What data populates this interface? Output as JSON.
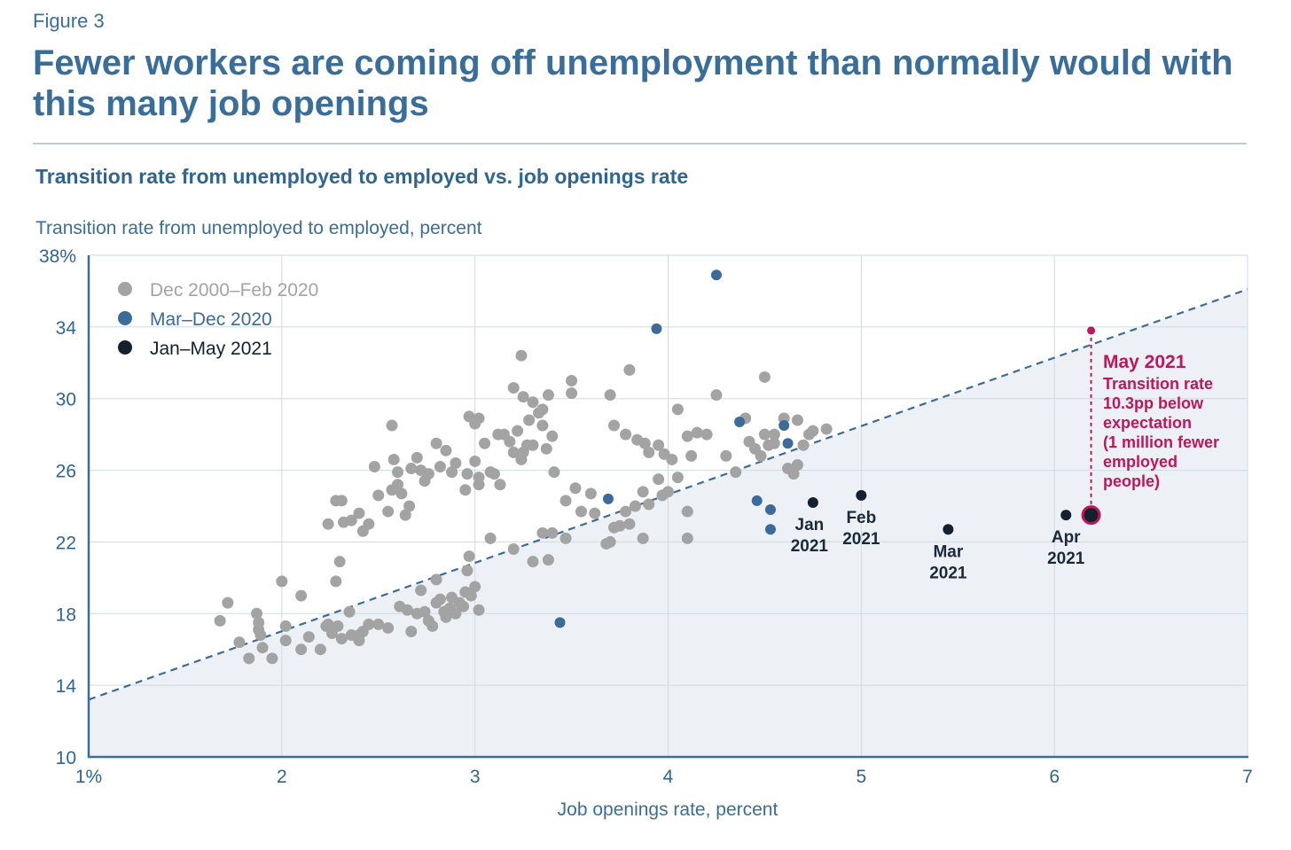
{
  "header": {
    "figure_label": "Figure 3",
    "title": "Fewer workers are coming off unemployment than normally would with this many job openings",
    "subtitle": "Transition rate from unemployed to employed vs. job openings rate"
  },
  "colors": {
    "gray": "#a3a3a3",
    "blue": "#3a6b9a",
    "dark": "#14202e",
    "accent": "#c0155a",
    "shade": "#edf1f6",
    "grid": "#cfdae5",
    "axis": "#3a6e9a"
  },
  "chart_data": {
    "type": "scatter",
    "title": "Transition rate from unemployed to employed vs. job openings rate",
    "xlabel": "Job openings rate, percent",
    "ylabel": "Transition rate from unemployed to employed, percent",
    "xlim": [
      1,
      7
    ],
    "ylim": [
      10,
      38
    ],
    "x_ticks": [
      "1%",
      "2",
      "3",
      "4",
      "5",
      "6",
      "7"
    ],
    "y_ticks": [
      "10",
      "14",
      "18",
      "22",
      "26",
      "30",
      "34",
      "38%"
    ],
    "grid": true,
    "legend_position": "top-left",
    "trend_line": {
      "style": "dashed",
      "points": [
        [
          1,
          13.2
        ],
        [
          7,
          36.1
        ]
      ]
    },
    "series": [
      {
        "name": "Dec 2000–Feb 2020",
        "color": "#a3a3a3",
        "points": [
          [
            1.68,
            17.6
          ],
          [
            1.72,
            18.6
          ],
          [
            1.78,
            16.4
          ],
          [
            1.83,
            15.5
          ],
          [
            1.87,
            18.0
          ],
          [
            1.88,
            17.5
          ],
          [
            1.88,
            17.1
          ],
          [
            1.89,
            16.8
          ],
          [
            1.9,
            16.1
          ],
          [
            1.95,
            15.5
          ],
          [
            2.0,
            19.8
          ],
          [
            2.02,
            16.5
          ],
          [
            2.02,
            17.3
          ],
          [
            2.1,
            19.0
          ],
          [
            2.1,
            16.0
          ],
          [
            2.14,
            16.7
          ],
          [
            2.2,
            16.0
          ],
          [
            2.23,
            17.3
          ],
          [
            2.24,
            17.4
          ],
          [
            2.26,
            16.9
          ],
          [
            2.29,
            17.3
          ],
          [
            2.31,
            16.6
          ],
          [
            2.35,
            18.1
          ],
          [
            2.36,
            16.8
          ],
          [
            2.4,
            16.8
          ],
          [
            2.4,
            16.5
          ],
          [
            2.42,
            17.0
          ],
          [
            2.45,
            17.4
          ],
          [
            2.24,
            23.0
          ],
          [
            2.28,
            24.3
          ],
          [
            2.31,
            24.3
          ],
          [
            2.32,
            23.1
          ],
          [
            2.36,
            23.2
          ],
          [
            2.4,
            23.6
          ],
          [
            2.42,
            22.6
          ],
          [
            2.45,
            23.0
          ],
          [
            2.48,
            26.2
          ],
          [
            2.5,
            24.6
          ],
          [
            2.55,
            23.7
          ],
          [
            2.57,
            24.9
          ],
          [
            2.58,
            26.6
          ],
          [
            2.6,
            25.2
          ],
          [
            2.62,
            24.7
          ],
          [
            2.64,
            23.5
          ],
          [
            2.66,
            24.0
          ],
          [
            2.67,
            26.1
          ],
          [
            2.7,
            26.7
          ],
          [
            2.72,
            26.0
          ],
          [
            2.74,
            25.4
          ],
          [
            2.76,
            25.8
          ],
          [
            2.8,
            27.5
          ],
          [
            2.82,
            26.2
          ],
          [
            2.85,
            27.1
          ],
          [
            2.88,
            25.9
          ],
          [
            2.9,
            26.4
          ],
          [
            2.95,
            24.9
          ],
          [
            2.96,
            25.8
          ],
          [
            3.0,
            26.5
          ],
          [
            3.02,
            25.6
          ],
          [
            3.05,
            27.5
          ],
          [
            3.08,
            25.9
          ],
          [
            3.1,
            25.8
          ],
          [
            3.13,
            25.2
          ],
          [
            2.57,
            28.5
          ],
          [
            2.6,
            25.9
          ],
          [
            2.97,
            29.0
          ],
          [
            3.0,
            28.6
          ],
          [
            3.02,
            28.9
          ],
          [
            3.12,
            28.0
          ],
          [
            3.15,
            28.0
          ],
          [
            3.18,
            27.6
          ],
          [
            3.2,
            27.0
          ],
          [
            3.22,
            28.2
          ],
          [
            3.24,
            26.6
          ],
          [
            3.25,
            27.0
          ],
          [
            3.27,
            27.4
          ],
          [
            3.28,
            28.8
          ],
          [
            3.3,
            27.4
          ],
          [
            3.33,
            29.2
          ],
          [
            3.35,
            28.5
          ],
          [
            3.37,
            27.2
          ],
          [
            3.4,
            27.9
          ],
          [
            3.2,
            30.6
          ],
          [
            3.25,
            30.1
          ],
          [
            3.3,
            29.8
          ],
          [
            3.35,
            29.4
          ],
          [
            3.38,
            30.2
          ],
          [
            3.5,
            30.3
          ],
          [
            3.5,
            31.0
          ],
          [
            3.24,
            32.4
          ],
          [
            3.41,
            25.9
          ],
          [
            2.3,
            20.9
          ],
          [
            2.28,
            19.8
          ],
          [
            2.5,
            17.4
          ],
          [
            2.55,
            17.2
          ],
          [
            2.61,
            18.4
          ],
          [
            2.65,
            18.2
          ],
          [
            2.67,
            17.0
          ],
          [
            2.7,
            18.0
          ],
          [
            2.72,
            19.3
          ],
          [
            2.74,
            18.1
          ],
          [
            2.76,
            17.6
          ],
          [
            2.78,
            17.3
          ],
          [
            2.8,
            19.9
          ],
          [
            2.8,
            18.6
          ],
          [
            2.82,
            18.8
          ],
          [
            2.84,
            18.1
          ],
          [
            2.85,
            17.8
          ],
          [
            2.87,
            18.3
          ],
          [
            2.88,
            18.9
          ],
          [
            2.9,
            18.0
          ],
          [
            2.92,
            18.6
          ],
          [
            2.94,
            18.4
          ],
          [
            2.95,
            19.2
          ],
          [
            2.96,
            20.4
          ],
          [
            2.97,
            21.2
          ],
          [
            2.98,
            19.0
          ],
          [
            3.0,
            19.5
          ],
          [
            3.02,
            18.2
          ],
          [
            3.02,
            25.2
          ],
          [
            3.08,
            22.2
          ],
          [
            3.2,
            21.6
          ],
          [
            3.3,
            20.9
          ],
          [
            3.35,
            22.5
          ],
          [
            3.38,
            21.0
          ],
          [
            3.4,
            22.5
          ],
          [
            3.47,
            22.2
          ],
          [
            3.47,
            24.3
          ],
          [
            3.52,
            25.0
          ],
          [
            3.55,
            23.7
          ],
          [
            3.6,
            24.7
          ],
          [
            3.62,
            23.6
          ],
          [
            3.68,
            21.9
          ],
          [
            3.7,
            22.0
          ],
          [
            3.72,
            22.8
          ],
          [
            3.75,
            22.9
          ],
          [
            3.78,
            23.7
          ],
          [
            3.8,
            23.0
          ],
          [
            3.83,
            24.0
          ],
          [
            3.87,
            24.8
          ],
          [
            3.87,
            22.2
          ],
          [
            3.9,
            24.1
          ],
          [
            3.95,
            25.5
          ],
          [
            3.97,
            24.6
          ],
          [
            4.0,
            24.8
          ],
          [
            4.02,
            26.6
          ],
          [
            4.05,
            25.6
          ],
          [
            4.1,
            23.7
          ],
          [
            4.1,
            22.2
          ],
          [
            4.12,
            26.8
          ],
          [
            3.7,
            30.2
          ],
          [
            3.72,
            28.5
          ],
          [
            3.78,
            28.0
          ],
          [
            3.8,
            31.6
          ],
          [
            3.84,
            27.7
          ],
          [
            3.88,
            27.5
          ],
          [
            3.9,
            27.0
          ],
          [
            3.95,
            27.4
          ],
          [
            3.98,
            26.9
          ],
          [
            4.05,
            29.4
          ],
          [
            4.1,
            27.9
          ],
          [
            4.15,
            28.1
          ],
          [
            4.2,
            28.0
          ],
          [
            4.25,
            30.2
          ],
          [
            4.3,
            26.8
          ],
          [
            4.35,
            25.9
          ],
          [
            4.4,
            28.9
          ],
          [
            4.42,
            27.6
          ],
          [
            4.45,
            27.2
          ],
          [
            4.48,
            26.8
          ],
          [
            4.5,
            31.2
          ],
          [
            4.52,
            27.4
          ],
          [
            4.55,
            28.0
          ],
          [
            4.6,
            28.9
          ],
          [
            4.62,
            26.1
          ],
          [
            4.65,
            25.8
          ],
          [
            4.67,
            26.3
          ],
          [
            4.7,
            27.4
          ],
          [
            4.73,
            28.0
          ],
          [
            4.75,
            28.2
          ],
          [
            4.82,
            28.3
          ],
          [
            4.5,
            28.0
          ],
          [
            4.55,
            27.5
          ],
          [
            4.67,
            28.8
          ]
        ]
      },
      {
        "name": "Mar–Dec 2020",
        "color": "#3a6b9a",
        "points": [
          [
            3.44,
            17.5
          ],
          [
            3.69,
            24.4
          ],
          [
            3.94,
            33.9
          ],
          [
            4.25,
            36.9
          ],
          [
            4.37,
            28.7
          ],
          [
            4.46,
            24.3
          ],
          [
            4.53,
            23.8
          ],
          [
            4.53,
            22.7
          ],
          [
            4.6,
            28.5
          ],
          [
            4.62,
            27.5
          ]
        ]
      },
      {
        "name": "Jan–May 2021",
        "color": "#14202e",
        "points": [
          [
            4.75,
            24.2
          ],
          [
            5.0,
            24.6
          ],
          [
            5.45,
            22.7
          ],
          [
            6.06,
            23.5
          ],
          [
            6.19,
            23.5
          ]
        ],
        "point_labels": [
          "Jan\n2021",
          "Feb\n2021",
          "Mar\n2021",
          "Apr\n2021",
          ""
        ]
      }
    ],
    "annotations": [
      {
        "title": "May 2021",
        "lines": [
          "Transition rate",
          "10.3pp below",
          "expectation",
          "(1 million fewer",
          "employed",
          "people)"
        ],
        "x": 6.19,
        "y_from": 23.5,
        "y_to": 33.8,
        "color": "#c0155a"
      }
    ]
  }
}
